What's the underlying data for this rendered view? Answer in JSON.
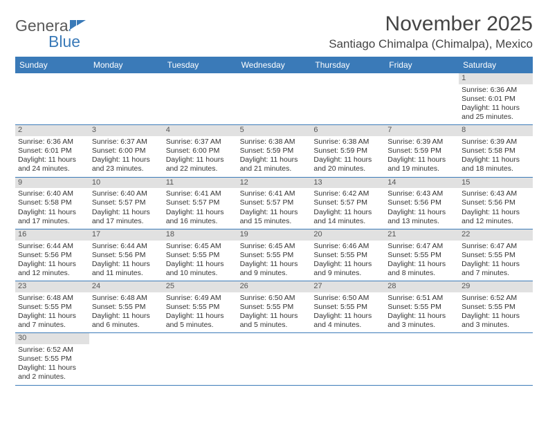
{
  "logo": {
    "part1": "Genera",
    "part2": "Blue"
  },
  "title": "November 2025",
  "location": "Santiago Chimalpa (Chimalpa), Mexico",
  "colors": {
    "accent": "#3a7ab8",
    "daybar": "#e1e1e1",
    "text": "#3a3a3a",
    "bg": "#ffffff"
  },
  "day_headers": [
    "Sunday",
    "Monday",
    "Tuesday",
    "Wednesday",
    "Thursday",
    "Friday",
    "Saturday"
  ],
  "weeks": [
    [
      null,
      null,
      null,
      null,
      null,
      null,
      {
        "n": "1",
        "sr": "Sunrise: 6:36 AM",
        "ss": "Sunset: 6:01 PM",
        "d1": "Daylight: 11 hours",
        "d2": "and 25 minutes."
      }
    ],
    [
      {
        "n": "2",
        "sr": "Sunrise: 6:36 AM",
        "ss": "Sunset: 6:01 PM",
        "d1": "Daylight: 11 hours",
        "d2": "and 24 minutes."
      },
      {
        "n": "3",
        "sr": "Sunrise: 6:37 AM",
        "ss": "Sunset: 6:00 PM",
        "d1": "Daylight: 11 hours",
        "d2": "and 23 minutes."
      },
      {
        "n": "4",
        "sr": "Sunrise: 6:37 AM",
        "ss": "Sunset: 6:00 PM",
        "d1": "Daylight: 11 hours",
        "d2": "and 22 minutes."
      },
      {
        "n": "5",
        "sr": "Sunrise: 6:38 AM",
        "ss": "Sunset: 5:59 PM",
        "d1": "Daylight: 11 hours",
        "d2": "and 21 minutes."
      },
      {
        "n": "6",
        "sr": "Sunrise: 6:38 AM",
        "ss": "Sunset: 5:59 PM",
        "d1": "Daylight: 11 hours",
        "d2": "and 20 minutes."
      },
      {
        "n": "7",
        "sr": "Sunrise: 6:39 AM",
        "ss": "Sunset: 5:59 PM",
        "d1": "Daylight: 11 hours",
        "d2": "and 19 minutes."
      },
      {
        "n": "8",
        "sr": "Sunrise: 6:39 AM",
        "ss": "Sunset: 5:58 PM",
        "d1": "Daylight: 11 hours",
        "d2": "and 18 minutes."
      }
    ],
    [
      {
        "n": "9",
        "sr": "Sunrise: 6:40 AM",
        "ss": "Sunset: 5:58 PM",
        "d1": "Daylight: 11 hours",
        "d2": "and 17 minutes."
      },
      {
        "n": "10",
        "sr": "Sunrise: 6:40 AM",
        "ss": "Sunset: 5:57 PM",
        "d1": "Daylight: 11 hours",
        "d2": "and 17 minutes."
      },
      {
        "n": "11",
        "sr": "Sunrise: 6:41 AM",
        "ss": "Sunset: 5:57 PM",
        "d1": "Daylight: 11 hours",
        "d2": "and 16 minutes."
      },
      {
        "n": "12",
        "sr": "Sunrise: 6:41 AM",
        "ss": "Sunset: 5:57 PM",
        "d1": "Daylight: 11 hours",
        "d2": "and 15 minutes."
      },
      {
        "n": "13",
        "sr": "Sunrise: 6:42 AM",
        "ss": "Sunset: 5:57 PM",
        "d1": "Daylight: 11 hours",
        "d2": "and 14 minutes."
      },
      {
        "n": "14",
        "sr": "Sunrise: 6:43 AM",
        "ss": "Sunset: 5:56 PM",
        "d1": "Daylight: 11 hours",
        "d2": "and 13 minutes."
      },
      {
        "n": "15",
        "sr": "Sunrise: 6:43 AM",
        "ss": "Sunset: 5:56 PM",
        "d1": "Daylight: 11 hours",
        "d2": "and 12 minutes."
      }
    ],
    [
      {
        "n": "16",
        "sr": "Sunrise: 6:44 AM",
        "ss": "Sunset: 5:56 PM",
        "d1": "Daylight: 11 hours",
        "d2": "and 12 minutes."
      },
      {
        "n": "17",
        "sr": "Sunrise: 6:44 AM",
        "ss": "Sunset: 5:56 PM",
        "d1": "Daylight: 11 hours",
        "d2": "and 11 minutes."
      },
      {
        "n": "18",
        "sr": "Sunrise: 6:45 AM",
        "ss": "Sunset: 5:55 PM",
        "d1": "Daylight: 11 hours",
        "d2": "and 10 minutes."
      },
      {
        "n": "19",
        "sr": "Sunrise: 6:45 AM",
        "ss": "Sunset: 5:55 PM",
        "d1": "Daylight: 11 hours",
        "d2": "and 9 minutes."
      },
      {
        "n": "20",
        "sr": "Sunrise: 6:46 AM",
        "ss": "Sunset: 5:55 PM",
        "d1": "Daylight: 11 hours",
        "d2": "and 9 minutes."
      },
      {
        "n": "21",
        "sr": "Sunrise: 6:47 AM",
        "ss": "Sunset: 5:55 PM",
        "d1": "Daylight: 11 hours",
        "d2": "and 8 minutes."
      },
      {
        "n": "22",
        "sr": "Sunrise: 6:47 AM",
        "ss": "Sunset: 5:55 PM",
        "d1": "Daylight: 11 hours",
        "d2": "and 7 minutes."
      }
    ],
    [
      {
        "n": "23",
        "sr": "Sunrise: 6:48 AM",
        "ss": "Sunset: 5:55 PM",
        "d1": "Daylight: 11 hours",
        "d2": "and 7 minutes."
      },
      {
        "n": "24",
        "sr": "Sunrise: 6:48 AM",
        "ss": "Sunset: 5:55 PM",
        "d1": "Daylight: 11 hours",
        "d2": "and 6 minutes."
      },
      {
        "n": "25",
        "sr": "Sunrise: 6:49 AM",
        "ss": "Sunset: 5:55 PM",
        "d1": "Daylight: 11 hours",
        "d2": "and 5 minutes."
      },
      {
        "n": "26",
        "sr": "Sunrise: 6:50 AM",
        "ss": "Sunset: 5:55 PM",
        "d1": "Daylight: 11 hours",
        "d2": "and 5 minutes."
      },
      {
        "n": "27",
        "sr": "Sunrise: 6:50 AM",
        "ss": "Sunset: 5:55 PM",
        "d1": "Daylight: 11 hours",
        "d2": "and 4 minutes."
      },
      {
        "n": "28",
        "sr": "Sunrise: 6:51 AM",
        "ss": "Sunset: 5:55 PM",
        "d1": "Daylight: 11 hours",
        "d2": "and 3 minutes."
      },
      {
        "n": "29",
        "sr": "Sunrise: 6:52 AM",
        "ss": "Sunset: 5:55 PM",
        "d1": "Daylight: 11 hours",
        "d2": "and 3 minutes."
      }
    ],
    [
      {
        "n": "30",
        "sr": "Sunrise: 6:52 AM",
        "ss": "Sunset: 5:55 PM",
        "d1": "Daylight: 11 hours",
        "d2": "and 2 minutes."
      },
      null,
      null,
      null,
      null,
      null,
      null
    ]
  ]
}
